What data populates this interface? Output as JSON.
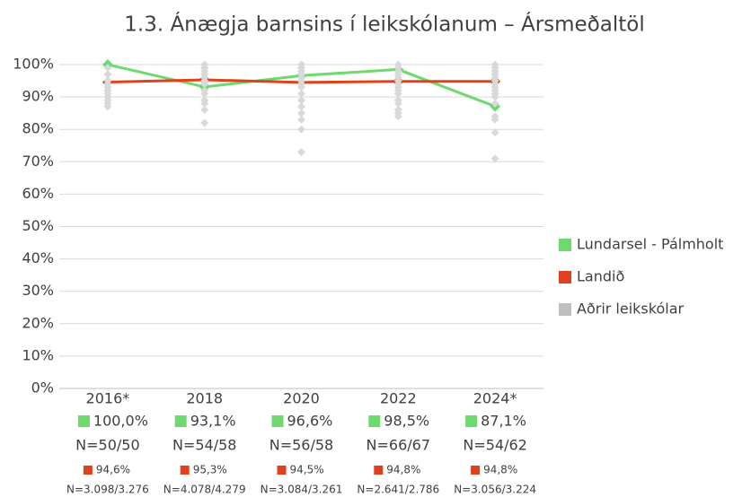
{
  "chart_data": {
    "type": "line",
    "title": "1.3. Ánægja barnsins í leikskólanum – Ársmeðaltöl",
    "categories": [
      "2016*",
      "2018",
      "2020",
      "2022",
      "2024*"
    ],
    "ylim": [
      0,
      100
    ],
    "yticks": [
      {
        "value": 0,
        "label": "0%"
      },
      {
        "value": 10,
        "label": "10%"
      },
      {
        "value": 20,
        "label": "20%"
      },
      {
        "value": 30,
        "label": "30%"
      },
      {
        "value": 40,
        "label": "40%"
      },
      {
        "value": 50,
        "label": "50%"
      },
      {
        "value": 60,
        "label": "60%"
      },
      {
        "value": 70,
        "label": "70%"
      },
      {
        "value": 80,
        "label": "80%"
      },
      {
        "value": 90,
        "label": "90%"
      },
      {
        "value": 100,
        "label": "100%"
      }
    ],
    "grid": true,
    "legend": "right",
    "series": [
      {
        "name": "Lundarsel - Pálmholt",
        "color": "#6ed96e",
        "values": [
          100,
          93.1,
          96.6,
          98.5,
          87.1
        ],
        "value_labels": [
          "100,0%",
          "93,1%",
          "96,6%",
          "98,5%",
          "87,1%"
        ],
        "n_labels": [
          "N=50/50",
          "N=54/58",
          "N=56/58",
          "N=66/67",
          "N=54/62"
        ]
      },
      {
        "name": "Landið",
        "color": "#e0401c",
        "values": [
          94.6,
          95.3,
          94.5,
          94.8,
          94.8
        ],
        "value_labels": [
          "94,6%",
          "95,3%",
          "94,5%",
          "94,8%",
          "94,8%"
        ],
        "n_labels": [
          "N=3.098/3.276",
          "N=4.078/4.279",
          "N=3.084/3.261",
          "N=2.641/2.786",
          "N=3.056/3.224"
        ]
      },
      {
        "name": "Aðrir leikskólar",
        "color": "#d9d9d9",
        "legend_color": "#bfbfbf",
        "type": "scatter",
        "values": [
          [
            99,
            97,
            95,
            94,
            93,
            92,
            91,
            90,
            89,
            88,
            87
          ],
          [
            100,
            99,
            98,
            97,
            96,
            95,
            94,
            92,
            91,
            89,
            88,
            86,
            82
          ],
          [
            100,
            99,
            98,
            97,
            96,
            95,
            94,
            93,
            91,
            89,
            87,
            85,
            83,
            80,
            73
          ],
          [
            100,
            99,
            98,
            97,
            96,
            95,
            94,
            93,
            92,
            91,
            89,
            88,
            86,
            85,
            84
          ],
          [
            100,
            99,
            98,
            97,
            96,
            95,
            94,
            93,
            92,
            91,
            90,
            88,
            84,
            83,
            79,
            71
          ]
        ]
      }
    ]
  }
}
